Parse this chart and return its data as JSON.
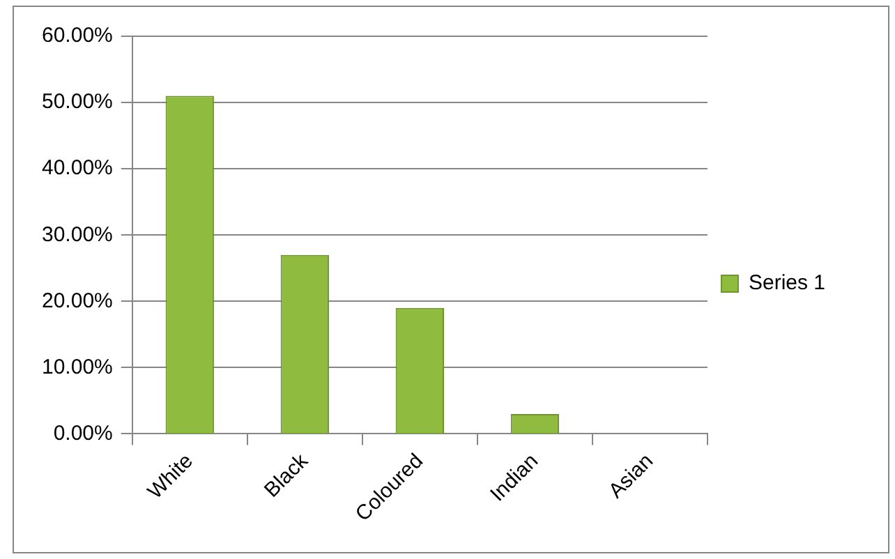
{
  "chart_data": {
    "type": "bar",
    "categories": [
      "White",
      "Black",
      "Coloured",
      "Indian",
      "Asian"
    ],
    "series": [
      {
        "name": "Series 1",
        "color": "#8fbc3f",
        "values": [
          51,
          27,
          19,
          3,
          0
        ]
      }
    ],
    "ylim": [
      0,
      60
    ],
    "yticks": [
      {
        "value": 0,
        "label": "0.00%"
      },
      {
        "value": 10,
        "label": "10.00%"
      },
      {
        "value": 20,
        "label": "20.00%"
      },
      {
        "value": 30,
        "label": "30.00%"
      },
      {
        "value": 40,
        "label": "40.00%"
      },
      {
        "value": 50,
        "label": "50.00%"
      },
      {
        "value": 60,
        "label": "60.00%"
      }
    ],
    "grid": "y",
    "legend": "right"
  }
}
